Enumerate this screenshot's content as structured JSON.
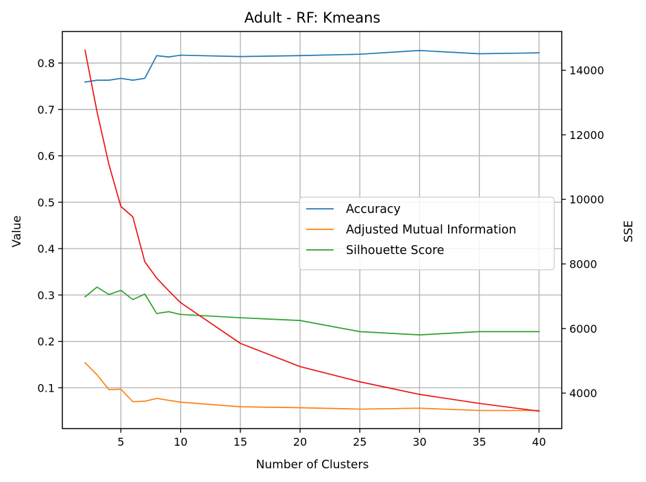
{
  "chart_data": {
    "type": "line",
    "title": "Adult - RF: Kmeans",
    "xlabel": "Number of Clusters",
    "ylabel": "Value",
    "y2label": "SSE",
    "x": [
      2,
      3,
      4,
      5,
      6,
      7,
      8,
      9,
      10,
      15,
      20,
      25,
      30,
      35,
      40
    ],
    "xticks": [
      5,
      10,
      15,
      20,
      25,
      30,
      35,
      40
    ],
    "xlim": [
      0.1,
      41.9
    ],
    "ylim": [
      0.012,
      0.868
    ],
    "yticks": [
      0.1,
      0.2,
      0.3,
      0.4,
      0.5,
      0.6,
      0.7,
      0.8
    ],
    "y2lim": [
      2900,
      15200
    ],
    "y2ticks": [
      4000,
      6000,
      8000,
      10000,
      12000,
      14000
    ],
    "grid": true,
    "legend_position": "center-right",
    "series": [
      {
        "name": "Accuracy",
        "axis": "left",
        "color": "#1f77b4",
        "values": [
          0.759,
          0.763,
          0.763,
          0.767,
          0.763,
          0.767,
          0.816,
          0.813,
          0.817,
          0.814,
          0.816,
          0.819,
          0.827,
          0.82,
          0.822
        ]
      },
      {
        "name": "Adjusted Mutual Information",
        "axis": "left",
        "color": "#ff7f0e",
        "values": [
          0.154,
          0.128,
          0.096,
          0.097,
          0.07,
          0.071,
          0.077,
          0.073,
          0.069,
          0.059,
          0.057,
          0.054,
          0.056,
          0.051,
          0.051
        ]
      },
      {
        "name": "Silhouette Score",
        "axis": "left",
        "color": "#2ca02c",
        "values": [
          0.296,
          0.317,
          0.301,
          0.31,
          0.29,
          0.302,
          0.26,
          0.264,
          0.258,
          0.251,
          0.245,
          0.221,
          0.214,
          0.221,
          0.221
        ]
      },
      {
        "axis": "right",
        "color": "#ee1111",
        "values": [
          14620,
          12720,
          11080,
          9780,
          9460,
          8070,
          7560,
          7170,
          6800,
          5540,
          4820,
          4350,
          3960,
          3680,
          3440
        ]
      }
    ]
  }
}
